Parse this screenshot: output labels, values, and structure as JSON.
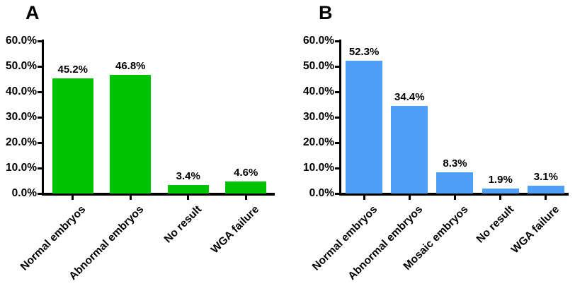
{
  "figure": {
    "background": "#ffffff",
    "axis_color": "#000000",
    "text_color": "#000000"
  },
  "chart_data": [
    {
      "type": "bar",
      "panel_label": "A",
      "categories": [
        "Normal embryos",
        "Abnormal embryos",
        "No result",
        "WGA failure"
      ],
      "values": [
        45.2,
        46.8,
        3.4,
        4.6
      ],
      "value_labels": [
        "45.2%",
        "46.8%",
        "3.4%",
        "4.6%"
      ],
      "bar_color": "#00c300",
      "title": "",
      "xlabel": "",
      "ylabel": "",
      "ylim": [
        0,
        60
      ],
      "ytick_step": 10,
      "ytick_labels": [
        "0.0%",
        "10.0%",
        "20.0%",
        "30.0%",
        "40.0%",
        "50.0%",
        "60.0%"
      ],
      "grid": false,
      "legend": "none",
      "xtick_rotation": 45
    },
    {
      "type": "bar",
      "panel_label": "B",
      "categories": [
        "Normal embryos",
        "Abnormal embryos",
        "Mosaic embryos",
        "No result",
        "WGA failure"
      ],
      "values": [
        52.3,
        34.4,
        8.3,
        1.9,
        3.1
      ],
      "value_labels": [
        "52.3%",
        "34.4%",
        "8.3%",
        "1.9%",
        "3.1%"
      ],
      "bar_color": "#4da0f6",
      "title": "",
      "xlabel": "",
      "ylabel": "",
      "ylim": [
        0,
        60
      ],
      "ytick_step": 10,
      "ytick_labels": [
        "0.0%",
        "10.0%",
        "20.0%",
        "30.0%",
        "40.0%",
        "50.0%",
        "60.0%"
      ],
      "grid": false,
      "legend": "none",
      "xtick_rotation": 45
    }
  ]
}
